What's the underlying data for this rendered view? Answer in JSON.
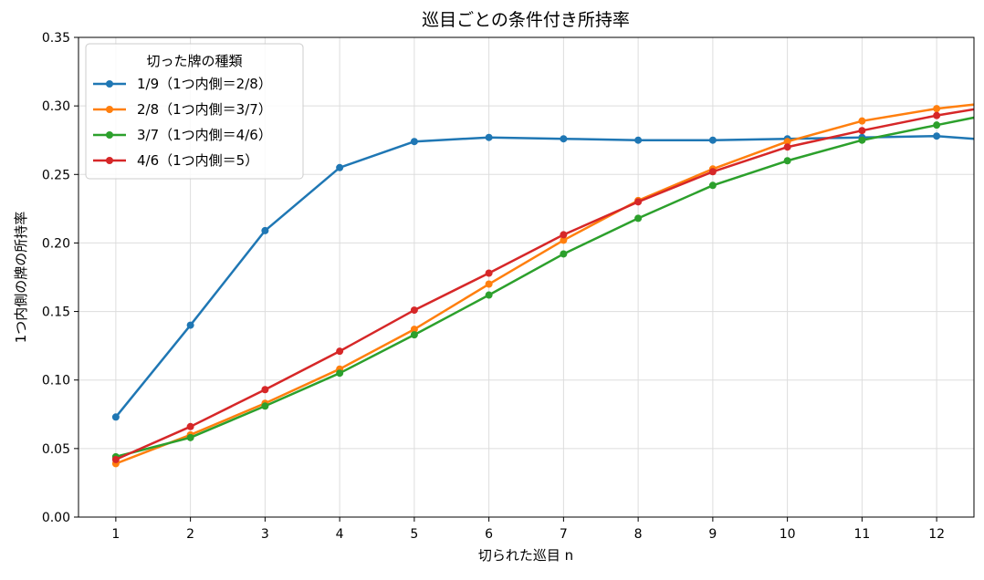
{
  "chart_data": {
    "type": "line",
    "title": "巡目ごとの条件付き所持率",
    "xlabel": "切られた巡目 n",
    "ylabel": "1つ内側の牌の所持率",
    "xlim": [
      0.5,
      12.5
    ],
    "ylim": [
      0.0,
      0.35
    ],
    "x": [
      1,
      2,
      3,
      4,
      5,
      6,
      7,
      8,
      9,
      10,
      11,
      12,
      13
    ],
    "xticks": [
      "1",
      "2",
      "3",
      "4",
      "5",
      "6",
      "7",
      "8",
      "9",
      "10",
      "11",
      "12"
    ],
    "yticks": [
      "0.00",
      "0.05",
      "0.10",
      "0.15",
      "0.20",
      "0.25",
      "0.30",
      "0.35"
    ],
    "grid": true,
    "legend": {
      "title": "切った牌の種類",
      "placement": "top-left"
    },
    "series": [
      {
        "name": "1/9（1つ内側＝2/8）",
        "color": "#1f77b4",
        "values": [
          0.073,
          0.14,
          0.209,
          0.255,
          0.274,
          0.277,
          0.276,
          0.275,
          0.275,
          0.276,
          0.277,
          0.278,
          0.274
        ]
      },
      {
        "name": "2/8（1つ内側＝3/7）",
        "color": "#ff7f0e",
        "values": [
          0.039,
          0.06,
          0.083,
          0.108,
          0.137,
          0.17,
          0.202,
          0.231,
          0.254,
          0.274,
          0.289,
          0.298,
          0.304
        ]
      },
      {
        "name": "3/7（1つ内側＝4/6）",
        "color": "#2ca02c",
        "values": [
          0.044,
          0.058,
          0.081,
          0.105,
          0.133,
          0.162,
          0.192,
          0.218,
          0.242,
          0.26,
          0.275,
          0.286,
          0.297
        ]
      },
      {
        "name": "4/6（1つ内側＝5）",
        "color": "#d62728",
        "values": [
          0.042,
          0.066,
          0.093,
          0.121,
          0.151,
          0.178,
          0.206,
          0.23,
          0.252,
          0.27,
          0.282,
          0.293,
          0.302
        ]
      }
    ]
  }
}
